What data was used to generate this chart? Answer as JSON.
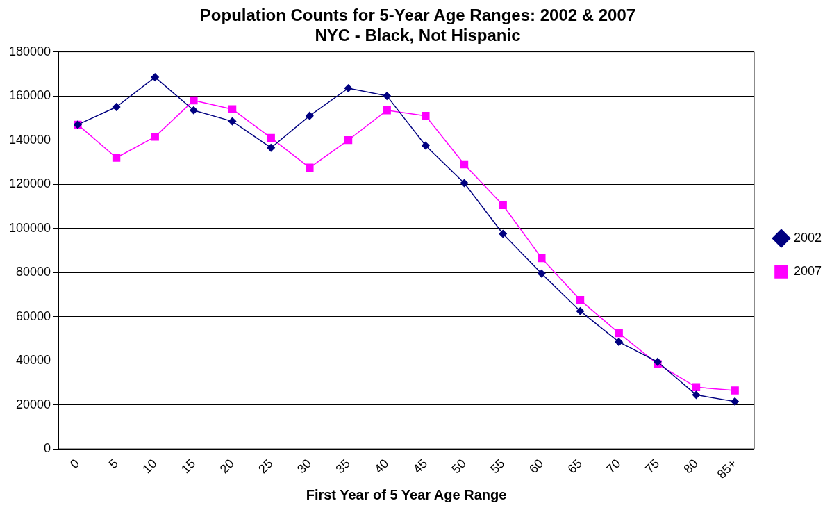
{
  "chart_data": {
    "type": "line",
    "title": "Population Counts for 5-Year Age Ranges: 2002 & 2007\nNYC - Black, Not Hispanic",
    "xlabel": "First Year of 5 Year Age Range",
    "categories": [
      "0",
      "5",
      "10",
      "15",
      "20",
      "25",
      "30",
      "35",
      "40",
      "45",
      "50",
      "55",
      "60",
      "65",
      "70",
      "75",
      "80",
      "85+"
    ],
    "series": [
      {
        "name": "2002",
        "color": "#000080",
        "marker": "diamond",
        "values": [
          147000,
          155000,
          168500,
          153500,
          148500,
          136500,
          151000,
          163500,
          160000,
          137500,
          120500,
          97500,
          79500,
          62500,
          48500,
          39500,
          24500,
          21500
        ]
      },
      {
        "name": "2007",
        "color": "#ff00ff",
        "marker": "square",
        "values": [
          147000,
          132000,
          141500,
          158000,
          154000,
          141000,
          127500,
          140000,
          153500,
          151000,
          129000,
          110500,
          86500,
          67500,
          52500,
          38500,
          28000,
          26500
        ]
      }
    ],
    "ylim": [
      0,
      180000
    ],
    "yticks": [
      0,
      20000,
      40000,
      60000,
      80000,
      100000,
      120000,
      140000,
      160000,
      180000
    ],
    "grid": "y",
    "legend": "right"
  }
}
